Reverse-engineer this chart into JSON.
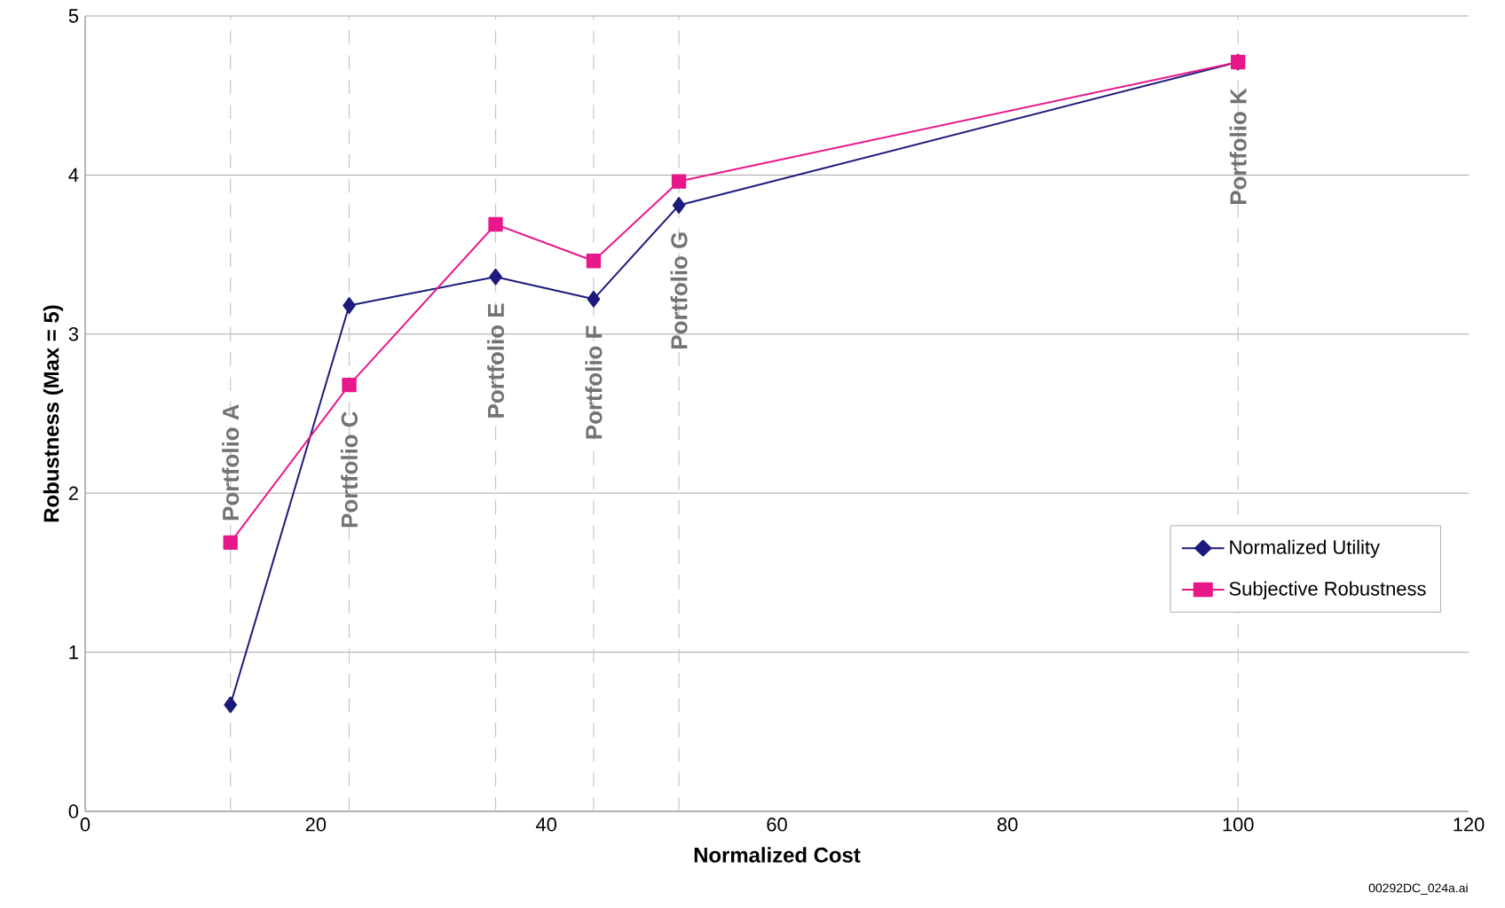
{
  "chart_data": {
    "type": "line",
    "xlabel": "Normalized Cost",
    "ylabel": "Robustness (Max = 5)",
    "series": [
      {
        "name": "Normalized Utility",
        "color": "#1c1a7c",
        "marker": "diamond",
        "x": [
          12.6,
          22.9,
          35.6,
          44.1,
          51.5,
          100
        ],
        "values": [
          0.67,
          3.18,
          3.36,
          3.22,
          3.81,
          4.71
        ]
      },
      {
        "name": "Subjective Robustness",
        "color": "#e8178a",
        "marker": "square",
        "x": [
          12.6,
          22.9,
          35.6,
          44.1,
          51.5,
          100
        ],
        "values": [
          1.69,
          2.68,
          3.69,
          3.46,
          3.96,
          4.71
        ]
      }
    ],
    "xlim": [
      0,
      120
    ],
    "xticks": [
      0,
      20,
      40,
      60,
      80,
      100,
      120
    ],
    "ylim": [
      0,
      5
    ],
    "yticks": [
      0,
      1,
      2,
      3,
      4,
      5
    ],
    "grid": "y",
    "legend": "bottom right",
    "line_style": "solid",
    "ref_lines": [
      {
        "axis": "x",
        "value": 12.6,
        "label": "Portfolio A",
        "color": "#c8c8c8",
        "line_style": "dashed"
      },
      {
        "axis": "x",
        "value": 22.9,
        "label": "Portfolio C",
        "color": "#c8c8c8",
        "line_style": "dashed"
      },
      {
        "axis": "x",
        "value": 35.6,
        "label": "Portfolio E",
        "color": "#c8c8c8",
        "line_style": "dashed"
      },
      {
        "axis": "x",
        "value": 44.1,
        "label": "Portfolio F",
        "color": "#c8c8c8",
        "line_style": "dashed"
      },
      {
        "axis": "x",
        "value": 51.5,
        "label": "Portfolio G",
        "color": "#c8c8c8",
        "line_style": "dashed"
      },
      {
        "axis": "x",
        "value": 100,
        "label": "Portfolio K",
        "color": "#c8c8c8",
        "line_style": "dashed"
      }
    ],
    "annotations": [
      "00292DC_024a.ai"
    ]
  }
}
